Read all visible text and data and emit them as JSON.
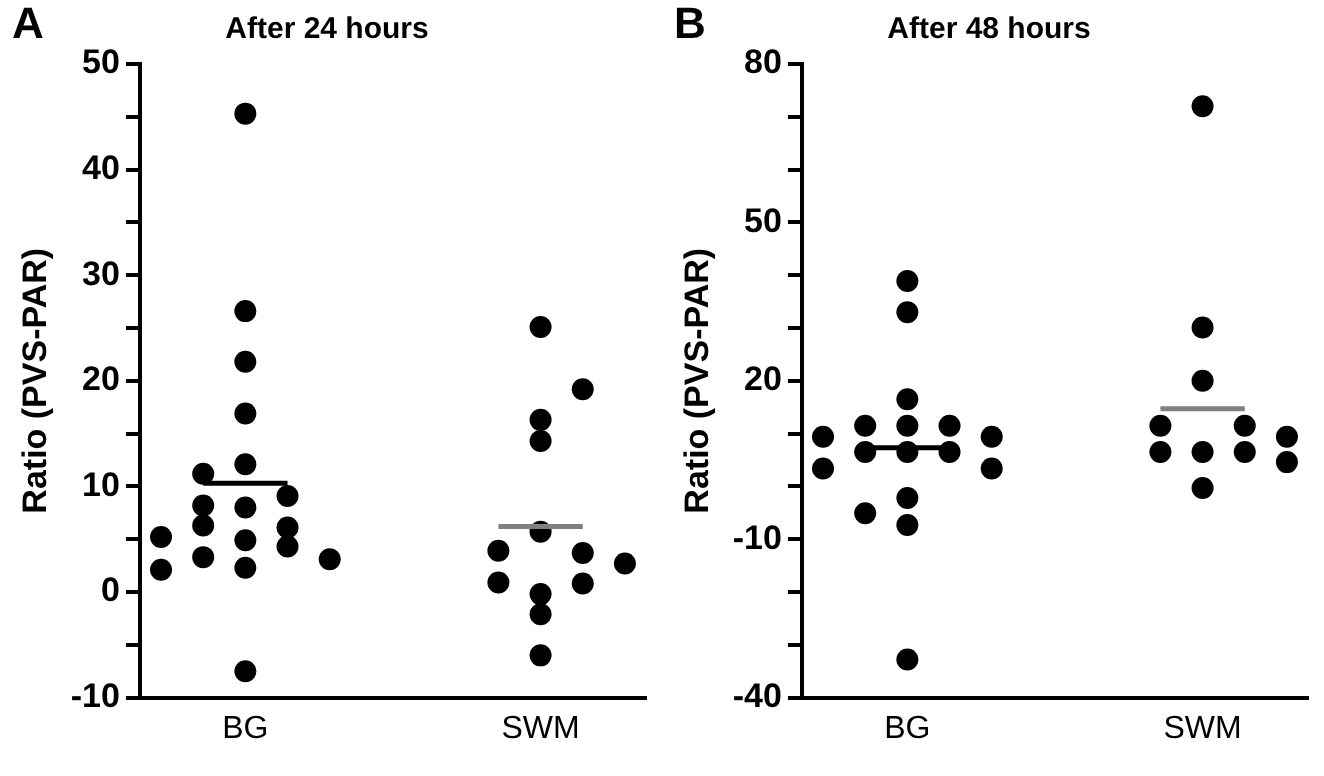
{
  "chart_data": [
    {
      "type": "scatter",
      "title": "After 24 hours",
      "ylabel": "Ratio (PVS-PAR)",
      "annotations": [
        "A"
      ],
      "categories": [
        null,
        null,
        "BG",
        null,
        null,
        null,
        null,
        null,
        null,
        "SWM",
        null,
        null
      ],
      "ylim": [
        -10,
        50
      ],
      "yticks": [
        -10,
        {
          "value": -5,
          "label": null
        },
        0,
        {
          "value": 5,
          "label": null
        },
        10,
        {
          "value": 15,
          "label": null
        },
        20,
        {
          "value": 25,
          "label": null
        },
        30,
        {
          "value": 35,
          "label": null
        },
        40,
        {
          "value": 45,
          "label": null
        },
        50
      ],
      "grid": false,
      "legend": false,
      "marker": "circle",
      "series": [
        {
          "color": "#000000",
          "values": [
            2.1,
            11.2,
            45.3,
            9.1,
            3.1,
            null,
            null,
            null,
            3.9,
            25.1,
            19.2,
            2.7
          ]
        },
        {
          "color": "#000000",
          "values": [
            5.2,
            8.2,
            26.6,
            6.1,
            null,
            null,
            null,
            null,
            0.9,
            16.3,
            3.7,
            null
          ]
        },
        {
          "color": "#000000",
          "values": [
            null,
            6.3,
            21.8,
            4.3,
            null,
            null,
            null,
            null,
            null,
            14.3,
            0.8,
            null
          ]
        },
        {
          "color": "#000000",
          "values": [
            null,
            3.3,
            16.9,
            null,
            null,
            null,
            null,
            null,
            null,
            5.7,
            null,
            null
          ]
        },
        {
          "color": "#000000",
          "values": [
            null,
            null,
            12.1,
            null,
            null,
            null,
            null,
            null,
            null,
            -0.2,
            null,
            null
          ]
        },
        {
          "color": "#000000",
          "values": [
            null,
            null,
            8.0,
            null,
            null,
            null,
            null,
            null,
            null,
            -2.1,
            null,
            null
          ]
        },
        {
          "color": "#000000",
          "values": [
            null,
            null,
            4.9,
            null,
            null,
            null,
            null,
            null,
            null,
            -6.0,
            null,
            null
          ]
        },
        {
          "color": "#000000",
          "values": [
            null,
            null,
            2.3,
            null,
            null,
            null,
            null,
            null,
            null,
            null,
            null,
            null
          ]
        },
        {
          "color": "#000000",
          "values": [
            null,
            null,
            -7.5,
            null,
            null,
            null,
            null,
            null,
            null,
            null,
            null,
            null
          ]
        },
        {
          "type": "line",
          "marker": "none",
          "color": "#000000",
          "values": [
            null,
            10.3,
            10.3,
            10.3,
            null,
            null,
            null,
            null,
            null,
            null,
            null,
            null
          ]
        },
        {
          "type": "line",
          "marker": "none",
          "color": "#808080",
          "values": [
            null,
            null,
            null,
            null,
            null,
            null,
            null,
            null,
            6.2,
            6.2,
            6.2,
            null
          ]
        }
      ]
    },
    {
      "type": "scatter",
      "title": "After 48 hours",
      "ylabel": "Ratio (PVS-PAR)",
      "annotations": [
        "B"
      ],
      "categories": [
        null,
        null,
        "BG",
        null,
        null,
        null,
        null,
        null,
        null,
        "SWM",
        null,
        null
      ],
      "ylim": [
        -40,
        80
      ],
      "yticks": [
        -40,
        {
          "value": -30,
          "label": null
        },
        {
          "value": -20,
          "label": null
        },
        -10,
        {
          "value": 0,
          "label": null
        },
        {
          "value": 10,
          "label": null
        },
        20,
        {
          "value": 30,
          "label": null
        },
        {
          "value": 40,
          "label": null
        },
        50,
        {
          "value": 60,
          "label": null
        },
        {
          "value": 70,
          "label": null
        },
        80
      ],
      "grid": false,
      "legend": false,
      "marker": "circle",
      "series": [
        {
          "color": "#000000",
          "values": [
            9.4,
            11.5,
            38.9,
            11.5,
            9.4,
            null,
            null,
            null,
            11.5,
            72.0,
            11.5,
            9.4
          ]
        },
        {
          "color": "#000000",
          "values": [
            3.4,
            6.5,
            33.0,
            6.5,
            3.4,
            null,
            null,
            null,
            6.5,
            30.1,
            6.5,
            4.6
          ]
        },
        {
          "color": "#000000",
          "values": [
            null,
            -5.1,
            16.5,
            null,
            null,
            null,
            null,
            null,
            null,
            20.0,
            null,
            null
          ]
        },
        {
          "color": "#000000",
          "values": [
            null,
            null,
            11.5,
            null,
            null,
            null,
            null,
            null,
            null,
            6.5,
            null,
            null
          ]
        },
        {
          "color": "#000000",
          "values": [
            null,
            null,
            6.5,
            null,
            null,
            null,
            null,
            null,
            null,
            -0.3,
            null,
            null
          ]
        },
        {
          "color": "#000000",
          "values": [
            null,
            null,
            -2.2,
            null,
            null,
            null,
            null,
            null,
            null,
            null,
            null,
            null
          ]
        },
        {
          "color": "#000000",
          "values": [
            null,
            null,
            -7.3,
            null,
            null,
            null,
            null,
            null,
            null,
            null,
            null,
            null
          ]
        },
        {
          "color": "#000000",
          "values": [
            null,
            null,
            -32.8,
            null,
            null,
            null,
            null,
            null,
            null,
            null,
            null,
            null
          ]
        },
        {
          "type": "line",
          "marker": "none",
          "color": "#000000",
          "values": [
            null,
            7.3,
            7.3,
            7.3,
            null,
            null,
            null,
            null,
            null,
            null,
            null,
            null
          ]
        },
        {
          "type": "line",
          "marker": "none",
          "color": "#808080",
          "values": [
            null,
            null,
            null,
            null,
            null,
            null,
            null,
            null,
            14.7,
            14.7,
            14.7,
            null
          ]
        }
      ]
    }
  ]
}
